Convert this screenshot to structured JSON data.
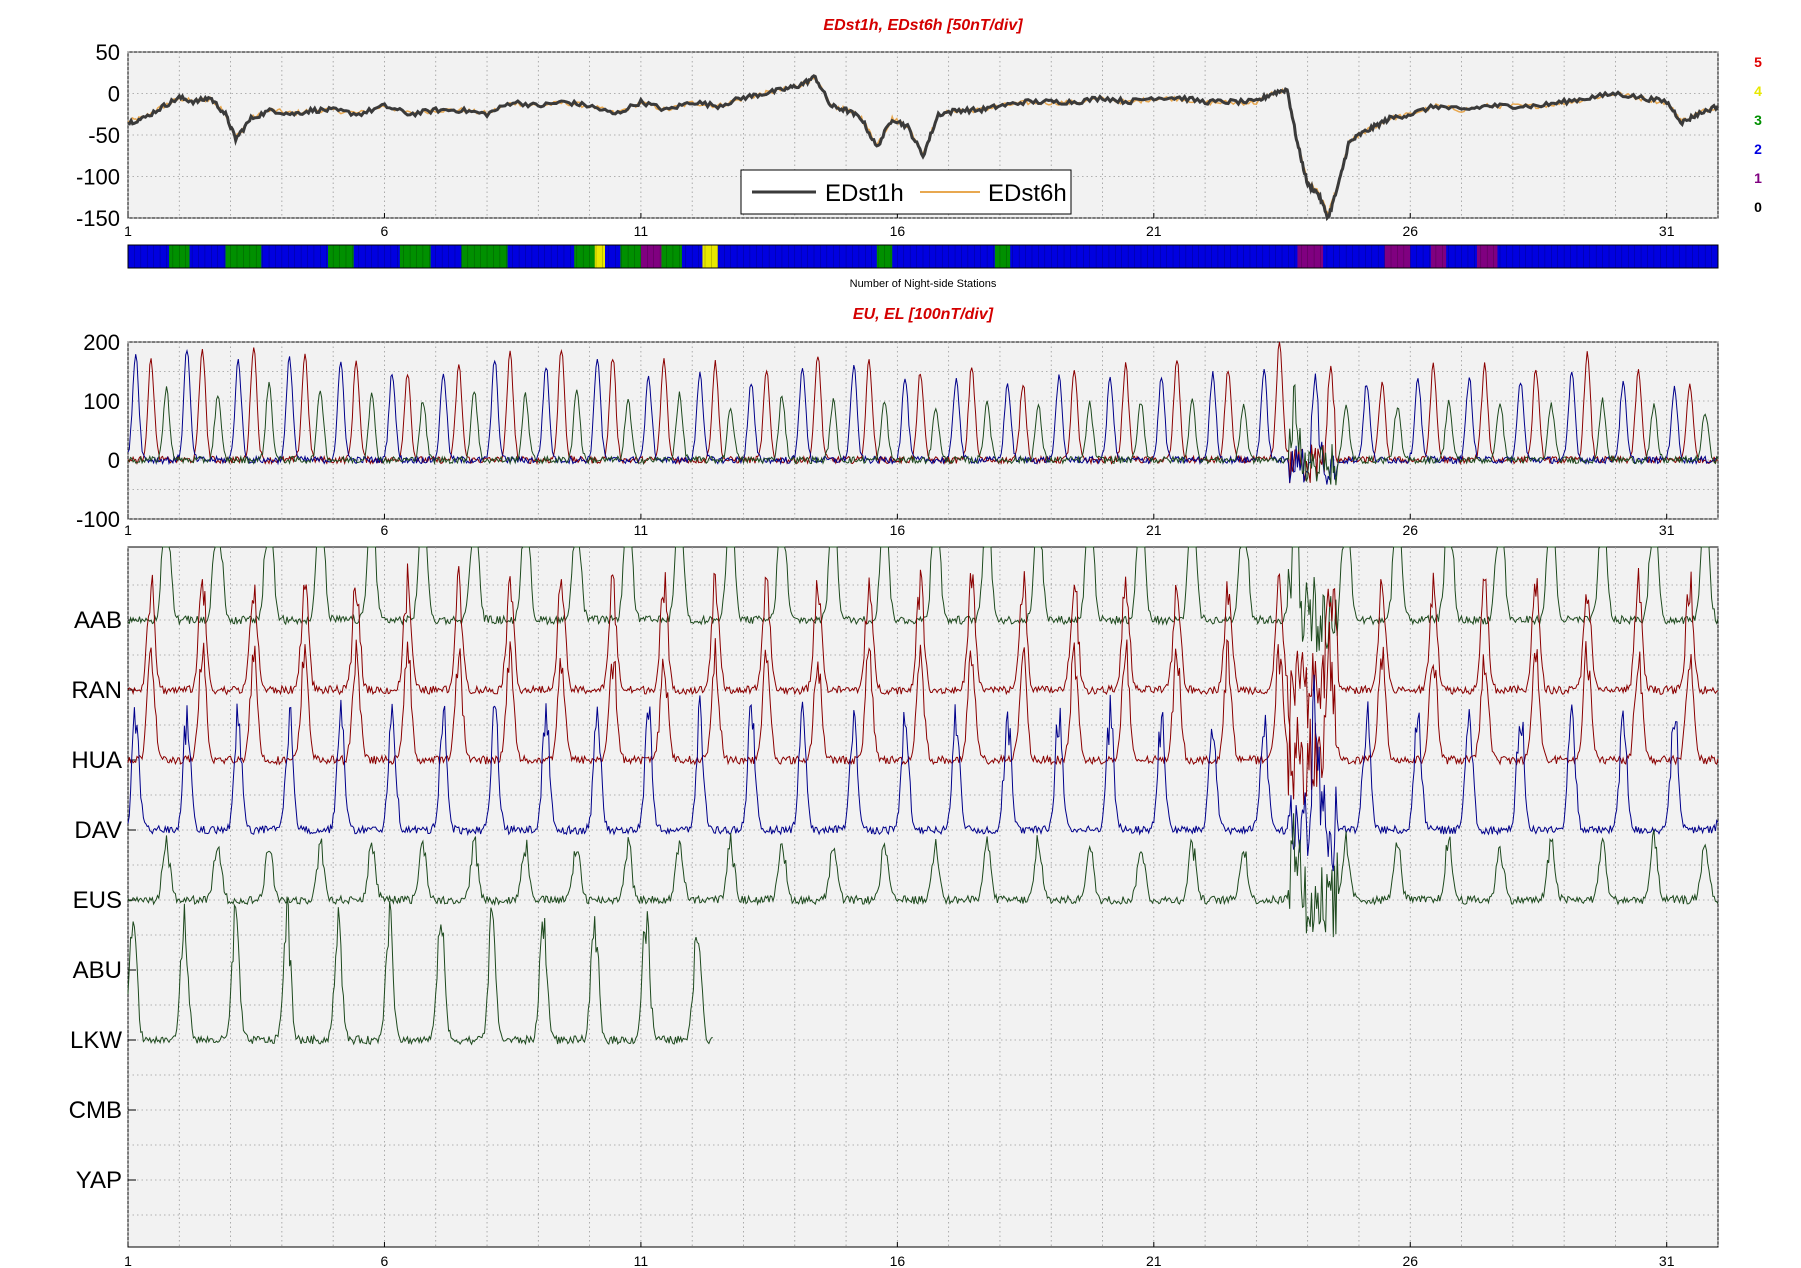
{
  "chart_data": [
    {
      "type": "line",
      "title": "EDst1h, EDst6h [50nT/div]",
      "xlabel": "",
      "ylabel": "",
      "xlim": [
        0,
        31
      ],
      "ylim": [
        -150,
        50
      ],
      "x_ticks": [
        "1",
        "6",
        "11",
        "16",
        "21",
        "26",
        "31"
      ],
      "y_ticks": [
        "50",
        "0",
        "-50",
        "-100",
        "-150"
      ],
      "grid": true,
      "legend": {
        "position": "bottom-center",
        "entries": [
          "EDst1h",
          "EDst6h"
        ]
      },
      "series": [
        {
          "name": "EDst1h",
          "color": "#3a3a3a",
          "x": [
            0,
            0.3,
            0.7,
            1.0,
            1.3,
            1.6,
            1.9,
            2.1,
            2.4,
            2.8,
            3.2,
            3.6,
            4.0,
            4.5,
            5.0,
            5.5,
            6.0,
            6.5,
            7.0,
            7.5,
            8.0,
            8.5,
            9.0,
            9.5,
            10.0,
            10.5,
            11.0,
            11.5,
            12.0,
            12.4,
            12.8,
            13.1,
            13.4,
            13.7,
            14.0,
            14.3,
            14.6,
            14.9,
            15.2,
            15.5,
            15.8,
            16.2,
            16.6,
            17.0,
            17.5,
            18.0,
            18.5,
            19.0,
            19.5,
            20.0,
            20.5,
            21.0,
            21.5,
            22.0,
            22.3,
            22.6,
            22.8,
            23.0,
            23.2,
            23.4,
            23.6,
            23.8,
            24.0,
            24.3,
            24.6,
            25.0,
            25.5,
            26.0,
            26.5,
            27.0,
            27.5,
            28.0,
            28.5,
            29.0,
            29.5,
            30.0,
            30.3,
            30.6,
            31.0
          ],
          "values": [
            -35,
            -30,
            -15,
            -5,
            -10,
            -5,
            -25,
            -55,
            -30,
            -20,
            -25,
            -20,
            -20,
            -25,
            -15,
            -25,
            -20,
            -20,
            -25,
            -10,
            -15,
            -10,
            -15,
            -25,
            -10,
            -20,
            -10,
            -15,
            -5,
            0,
            5,
            10,
            20,
            -15,
            -20,
            -30,
            -65,
            -30,
            -40,
            -75,
            -25,
            -20,
            -20,
            -15,
            -10,
            -10,
            -10,
            -5,
            -10,
            -5,
            -5,
            -10,
            -10,
            -10,
            0,
            5,
            -60,
            -110,
            -120,
            -150,
            -110,
            -60,
            -50,
            -40,
            -30,
            -25,
            -15,
            -20,
            -15,
            -15,
            -15,
            -10,
            -5,
            0,
            -5,
            -10,
            -35,
            -25,
            -15
          ]
        },
        {
          "name": "EDst6h",
          "color": "#e8a850",
          "x": [
            0,
            0.3,
            0.7,
            1.0,
            1.3,
            1.6,
            1.9,
            2.1,
            2.4,
            2.8,
            3.2,
            3.6,
            4.0,
            4.5,
            5.0,
            5.5,
            6.0,
            6.5,
            7.0,
            7.5,
            8.0,
            8.5,
            9.0,
            9.5,
            10.0,
            10.5,
            11.0,
            11.5,
            12.0,
            12.4,
            12.8,
            13.1,
            13.4,
            13.7,
            14.0,
            14.3,
            14.6,
            14.9,
            15.2,
            15.5,
            15.8,
            16.2,
            16.6,
            17.0,
            17.5,
            18.0,
            18.5,
            19.0,
            19.5,
            20.0,
            20.5,
            21.0,
            21.5,
            22.0,
            22.3,
            22.6,
            22.8,
            23.0,
            23.2,
            23.4,
            23.6,
            23.8,
            24.0,
            24.3,
            24.6,
            25.0,
            25.5,
            26.0,
            26.5,
            27.0,
            27.5,
            28.0,
            28.5,
            29.0,
            29.5,
            30.0,
            30.3,
            30.6,
            31.0
          ],
          "values": [
            -34,
            -29,
            -15,
            -6,
            -10,
            -6,
            -24,
            -53,
            -30,
            -20,
            -24,
            -20,
            -20,
            -24,
            -15,
            -24,
            -20,
            -20,
            -24,
            -11,
            -15,
            -11,
            -15,
            -24,
            -11,
            -20,
            -11,
            -15,
            -6,
            0,
            5,
            10,
            18,
            -14,
            -20,
            -29,
            -62,
            -30,
            -39,
            -72,
            -25,
            -20,
            -20,
            -15,
            -11,
            -11,
            -11,
            -6,
            -11,
            -6,
            -6,
            -11,
            -11,
            -11,
            0,
            4,
            -58,
            -106,
            -118,
            -146,
            -108,
            -60,
            -50,
            -40,
            -30,
            -25,
            -15,
            -20,
            -15,
            -15,
            -15,
            -11,
            -6,
            0,
            -6,
            -11,
            -33,
            -24,
            -15
          ]
        }
      ]
    },
    {
      "type": "heatmap",
      "xlabel": "Number of Night-side Stations",
      "scale_labels": [
        "5",
        "4",
        "3",
        "2",
        "1",
        "0"
      ],
      "scale_colors": [
        "#e00000",
        "#e8e800",
        "#009000",
        "#0000e0",
        "#800080",
        "#000000"
      ],
      "segments": [
        {
          "from": 0.0,
          "to": 0.8,
          "value": 2
        },
        {
          "from": 0.8,
          "to": 1.2,
          "value": 3
        },
        {
          "from": 1.2,
          "to": 1.9,
          "value": 2
        },
        {
          "from": 1.9,
          "to": 2.6,
          "value": 3
        },
        {
          "from": 2.6,
          "to": 3.9,
          "value": 2
        },
        {
          "from": 3.9,
          "to": 4.4,
          "value": 3
        },
        {
          "from": 4.4,
          "to": 5.3,
          "value": 2
        },
        {
          "from": 5.3,
          "to": 5.9,
          "value": 3
        },
        {
          "from": 5.9,
          "to": 6.5,
          "value": 2
        },
        {
          "from": 6.5,
          "to": 7.4,
          "value": 3
        },
        {
          "from": 7.4,
          "to": 8.7,
          "value": 2
        },
        {
          "from": 8.7,
          "to": 9.1,
          "value": 3
        },
        {
          "from": 9.1,
          "to": 9.3,
          "value": 4
        },
        {
          "from": 9.3,
          "to": 9.6,
          "value": 2
        },
        {
          "from": 9.6,
          "to": 10.0,
          "value": 3
        },
        {
          "from": 10.0,
          "to": 10.4,
          "value": 1
        },
        {
          "from": 10.4,
          "to": 10.8,
          "value": 3
        },
        {
          "from": 10.8,
          "to": 11.2,
          "value": 2
        },
        {
          "from": 11.2,
          "to": 11.5,
          "value": 4
        },
        {
          "from": 11.5,
          "to": 14.6,
          "value": 2
        },
        {
          "from": 14.6,
          "to": 14.9,
          "value": 3
        },
        {
          "from": 14.9,
          "to": 16.9,
          "value": 2
        },
        {
          "from": 16.9,
          "to": 17.2,
          "value": 3
        },
        {
          "from": 17.2,
          "to": 22.8,
          "value": 2
        },
        {
          "from": 22.8,
          "to": 23.3,
          "value": 1
        },
        {
          "from": 23.3,
          "to": 24.5,
          "value": 2
        },
        {
          "from": 24.5,
          "to": 25.0,
          "value": 1
        },
        {
          "from": 25.0,
          "to": 25.4,
          "value": 2
        },
        {
          "from": 25.4,
          "to": 25.7,
          "value": 1
        },
        {
          "from": 25.7,
          "to": 26.3,
          "value": 2
        },
        {
          "from": 26.3,
          "to": 26.7,
          "value": 1
        },
        {
          "from": 26.7,
          "to": 31.0,
          "value": 2
        }
      ]
    },
    {
      "type": "line",
      "title": "EU, EL   [100nT/div]",
      "xlim": [
        0,
        31
      ],
      "ylim": [
        -100,
        200
      ],
      "x_ticks": [
        "1",
        "6",
        "11",
        "16",
        "21",
        "26",
        "31"
      ],
      "y_ticks": [
        "200",
        "100",
        "0",
        "-100"
      ],
      "grid": true,
      "daily_peak_series": [
        {
          "color": "#8b0000",
          "peak_offset_day": 0.45,
          "peak_values": [
            170,
            190,
            195,
            180,
            170,
            150,
            160,
            180,
            190,
            175,
            170,
            165,
            150,
            180,
            170,
            150,
            160,
            130,
            150,
            160,
            170,
            155,
            200,
            150,
            130,
            160,
            160,
            155,
            180,
            150,
            130
          ]
        },
        {
          "color": "#00008b",
          "peak_offset_day": 0.15,
          "peak_values": [
            180,
            190,
            170,
            175,
            165,
            150,
            150,
            170,
            160,
            175,
            140,
            150,
            130,
            160,
            160,
            140,
            140,
            130,
            140,
            140,
            140,
            145,
            150,
            130,
            130,
            140,
            140,
            135,
            150,
            130,
            120
          ]
        },
        {
          "color": "#1e4a1e",
          "peak_offset_day": 0.75,
          "peak_values": [
            120,
            110,
            130,
            120,
            110,
            100,
            120,
            110,
            120,
            100,
            110,
            90,
            110,
            100,
            100,
            90,
            100,
            90,
            95,
            100,
            100,
            95,
            110,
            90,
            90,
            100,
            100,
            95,
            100,
            90,
            80
          ]
        }
      ]
    },
    {
      "type": "line",
      "xlim": [
        0,
        31
      ],
      "x_ticks": [
        "1",
        "6",
        "11",
        "16",
        "21",
        "26",
        "31"
      ],
      "grid": true,
      "stations": [
        {
          "name": "AAB",
          "color": "#1e4a1e",
          "peak_offset_day": 0.75,
          "amplitude_div": 2.0,
          "has_data": [
            0,
            31
          ]
        },
        {
          "name": "RAN",
          "color": "#8b0000",
          "peak_offset_day": 0.45,
          "amplitude_div": 1.5,
          "has_data": [
            0,
            31
          ]
        },
        {
          "name": "HUA",
          "color": "#8b0000",
          "peak_offset_day": 0.45,
          "amplitude_div": 1.5,
          "has_data": [
            0,
            31
          ]
        },
        {
          "name": "DAV",
          "color": "#00008b",
          "peak_offset_day": 0.15,
          "amplitude_div": 1.6,
          "has_data": [
            0,
            31
          ]
        },
        {
          "name": "EUS",
          "color": "#1e4a1e",
          "peak_offset_day": 0.75,
          "amplitude_div": 0.8,
          "has_data": [
            0,
            31
          ]
        },
        {
          "name": "ABU",
          "color": "#1e4a1e",
          "peak_offset_day": 0.75,
          "amplitude_div": 0.0,
          "has_data": [
            0,
            0
          ]
        },
        {
          "name": "LKW",
          "color": "#1e4a1e",
          "peak_offset_day": 0.1,
          "amplitude_div": 1.7,
          "has_data": [
            0,
            11.4
          ]
        },
        {
          "name": "CMB",
          "color": "#1e4a1e",
          "peak_offset_day": 0.1,
          "amplitude_div": 0.0,
          "has_data": [
            0,
            0
          ]
        },
        {
          "name": "YAP",
          "color": "#1e4a1e",
          "peak_offset_day": 0.1,
          "amplitude_div": 0.0,
          "has_data": [
            0,
            0
          ]
        }
      ]
    }
  ]
}
